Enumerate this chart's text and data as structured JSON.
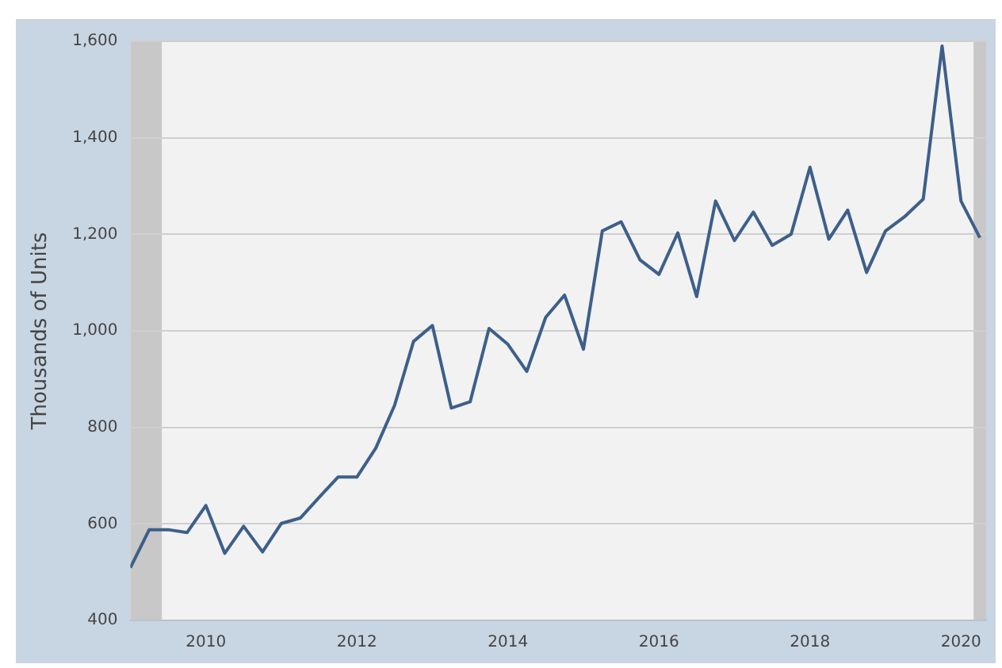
{
  "chart_data": {
    "type": "line",
    "ylabel": "Thousands of Units",
    "x": [
      "2009-01",
      "2009-04",
      "2009-07",
      "2009-10",
      "2010-01",
      "2010-04",
      "2010-07",
      "2010-10",
      "2011-01",
      "2011-04",
      "2011-07",
      "2011-10",
      "2012-01",
      "2012-04",
      "2012-07",
      "2012-10",
      "2013-01",
      "2013-04",
      "2013-07",
      "2013-10",
      "2014-01",
      "2014-04",
      "2014-07",
      "2014-10",
      "2015-01",
      "2015-04",
      "2015-07",
      "2015-10",
      "2016-01",
      "2016-04",
      "2016-07",
      "2016-10",
      "2017-01",
      "2017-04",
      "2017-07",
      "2017-10",
      "2018-01",
      "2018-04",
      "2018-07",
      "2018-10",
      "2019-01",
      "2019-04",
      "2019-07",
      "2019-10",
      "2020-01",
      "2020-04"
    ],
    "series": [
      {
        "color": "#3d5f8a",
        "values": [
          509,
          588,
          588,
          582,
          638,
          539,
          595,
          542,
          601,
          612,
          655,
          697,
          697,
          757,
          846,
          978,
          1011,
          840,
          853,
          1005,
          972,
          916,
          1028,
          1074,
          962,
          1207,
          1226,
          1147,
          1117,
          1203,
          1071,
          1269,
          1187,
          1246,
          1177,
          1200,
          1339,
          1190,
          1250,
          1121,
          1207,
          1236,
          1273,
          1590,
          1269,
          1193
        ]
      }
    ],
    "xlim": [
      "2009-01",
      "2020-05"
    ],
    "xticks": [
      "2010",
      "2012",
      "2014",
      "2016",
      "2018",
      "2020"
    ],
    "ylim": [
      400,
      1600
    ],
    "yticks": [
      400,
      600,
      800,
      {
        "value": 1000,
        "label": "1,000"
      },
      {
        "value": 1200,
        "label": "1,200"
      },
      {
        "value": 1400,
        "label": "1,400"
      },
      {
        "value": 1600,
        "label": "1,600"
      }
    ],
    "bands": [
      {
        "axis": "x",
        "from": "2009-01",
        "to": "2009-06",
        "color": "#c8c8c8"
      },
      {
        "axis": "x",
        "from": "2020-03",
        "to": "2020-05",
        "color": "#c8c8c8"
      }
    ],
    "grid": "y",
    "legend": false,
    "marker": "none",
    "line_style": "solid"
  }
}
